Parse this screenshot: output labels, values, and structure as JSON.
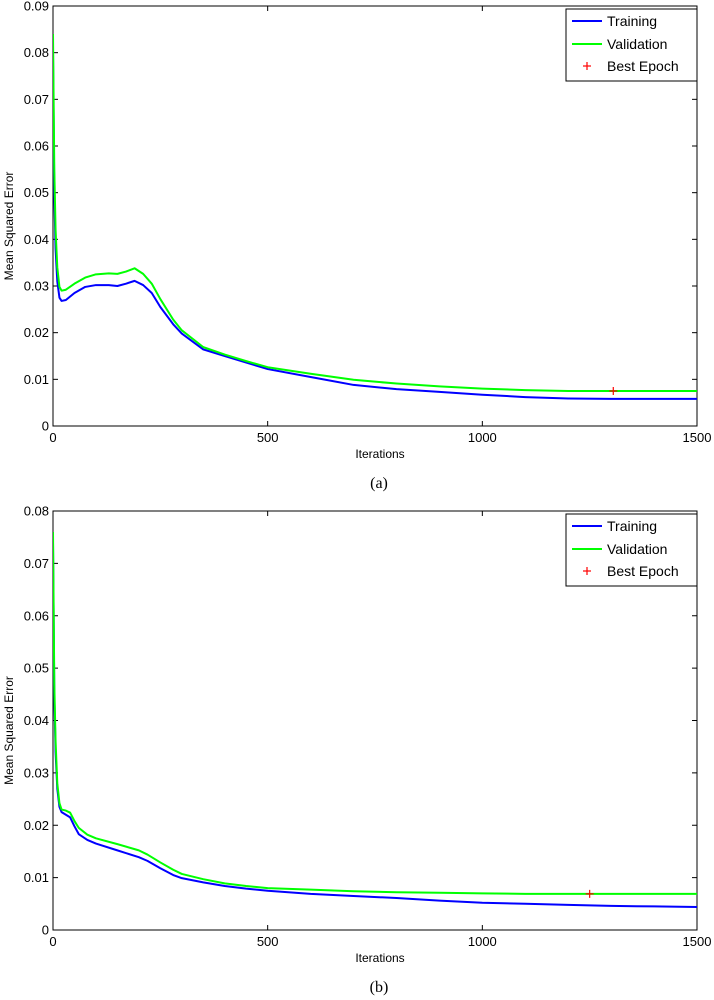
{
  "chart_data": [
    {
      "type": "line",
      "caption": "(a)",
      "xlabel": "Iterations",
      "ylabel": "Mean Squared Error",
      "xlim": [
        0,
        1500
      ],
      "ylim": [
        0,
        0.09
      ],
      "xticks": [
        0,
        500,
        1000,
        1500
      ],
      "yticks": [
        0,
        0.01,
        0.02,
        0.03,
        0.04,
        0.05,
        0.06,
        0.07,
        0.08,
        0.09
      ],
      "ytick_labels": [
        "0",
        "0.01",
        "0.02",
        "0.03",
        "0.04",
        "0.05",
        "0.06",
        "0.07",
        "0.08",
        "0.09"
      ],
      "grid": false,
      "legend_position": "top-right",
      "series": [
        {
          "name": "Training",
          "color": "#0000ff",
          "x": [
            0,
            3,
            6,
            10,
            15,
            20,
            30,
            50,
            75,
            100,
            130,
            150,
            170,
            190,
            210,
            230,
            250,
            280,
            300,
            350,
            400,
            450,
            500,
            600,
            700,
            800,
            900,
            1000,
            1100,
            1200,
            1300,
            1400,
            1500
          ],
          "y": [
            0.08,
            0.05,
            0.038,
            0.031,
            0.0275,
            0.0268,
            0.027,
            0.0285,
            0.0298,
            0.0302,
            0.0302,
            0.03,
            0.0305,
            0.0311,
            0.0302,
            0.0285,
            0.0255,
            0.0218,
            0.0198,
            0.0164,
            0.015,
            0.0136,
            0.0122,
            0.0105,
            0.0088,
            0.0079,
            0.0073,
            0.0067,
            0.0062,
            0.0059,
            0.0058,
            0.0058,
            0.0058
          ]
        },
        {
          "name": "Validation",
          "color": "#00ff00",
          "x": [
            0,
            3,
            6,
            10,
            15,
            20,
            30,
            50,
            75,
            100,
            130,
            150,
            170,
            190,
            210,
            230,
            250,
            280,
            300,
            350,
            400,
            450,
            500,
            600,
            700,
            800,
            900,
            1000,
            1100,
            1200,
            1300,
            1400,
            1500
          ],
          "y": [
            0.084,
            0.055,
            0.042,
            0.034,
            0.0298,
            0.029,
            0.0292,
            0.0305,
            0.0318,
            0.0325,
            0.0327,
            0.0326,
            0.0331,
            0.0338,
            0.0326,
            0.0305,
            0.0272,
            0.0228,
            0.0205,
            0.0169,
            0.0153,
            0.0139,
            0.0126,
            0.0112,
            0.0099,
            0.0091,
            0.0085,
            0.008,
            0.0077,
            0.0075,
            0.0075,
            0.0075,
            0.0075
          ]
        }
      ],
      "best_epoch": {
        "name": "Best Epoch",
        "color": "#ff0000",
        "x": 1305,
        "y": 0.0075
      }
    },
    {
      "type": "line",
      "caption": "(b)",
      "xlabel": "Iterations",
      "ylabel": "Mean Squared Error",
      "xlim": [
        0,
        1500
      ],
      "ylim": [
        0,
        0.08
      ],
      "xticks": [
        0,
        500,
        1000,
        1500
      ],
      "yticks": [
        0,
        0.01,
        0.02,
        0.03,
        0.04,
        0.05,
        0.06,
        0.07,
        0.08
      ],
      "ytick_labels": [
        "0",
        "0.01",
        "0.02",
        "0.03",
        "0.04",
        "0.05",
        "0.06",
        "0.07",
        "0.08"
      ],
      "grid": false,
      "legend_position": "top-right",
      "series": [
        {
          "name": "Training",
          "color": "#0000ff",
          "x": [
            0,
            3,
            6,
            10,
            15,
            20,
            30,
            40,
            50,
            60,
            80,
            100,
            150,
            200,
            220,
            250,
            280,
            300,
            350,
            400,
            450,
            500,
            600,
            700,
            800,
            900,
            1000,
            1100,
            1200,
            1300,
            1400,
            1500
          ],
          "y": [
            0.074,
            0.045,
            0.034,
            0.027,
            0.0235,
            0.0225,
            0.022,
            0.0215,
            0.0198,
            0.0183,
            0.0172,
            0.0165,
            0.0152,
            0.0139,
            0.0132,
            0.0118,
            0.0105,
            0.0099,
            0.0091,
            0.0084,
            0.0079,
            0.0075,
            0.0069,
            0.0065,
            0.0061,
            0.0056,
            0.0052,
            0.005,
            0.0048,
            0.0046,
            0.0045,
            0.0044
          ]
        },
        {
          "name": "Validation",
          "color": "#00ff00",
          "x": [
            0,
            3,
            6,
            10,
            15,
            20,
            30,
            40,
            50,
            60,
            80,
            100,
            150,
            200,
            220,
            250,
            280,
            300,
            350,
            400,
            450,
            500,
            600,
            700,
            800,
            900,
            1000,
            1100,
            1200,
            1300,
            1400,
            1500
          ],
          "y": [
            0.076,
            0.047,
            0.036,
            0.028,
            0.0242,
            0.023,
            0.0228,
            0.0224,
            0.0208,
            0.0195,
            0.0182,
            0.0175,
            0.0164,
            0.0152,
            0.0144,
            0.0129,
            0.0115,
            0.0107,
            0.0097,
            0.0089,
            0.0084,
            0.008,
            0.0077,
            0.0074,
            0.0072,
            0.0071,
            0.007,
            0.0069,
            0.0069,
            0.0069,
            0.0069,
            0.0069
          ]
        }
      ],
      "best_epoch": {
        "name": "Best Epoch",
        "color": "#ff0000",
        "x": 1250,
        "y": 0.0069
      }
    }
  ]
}
